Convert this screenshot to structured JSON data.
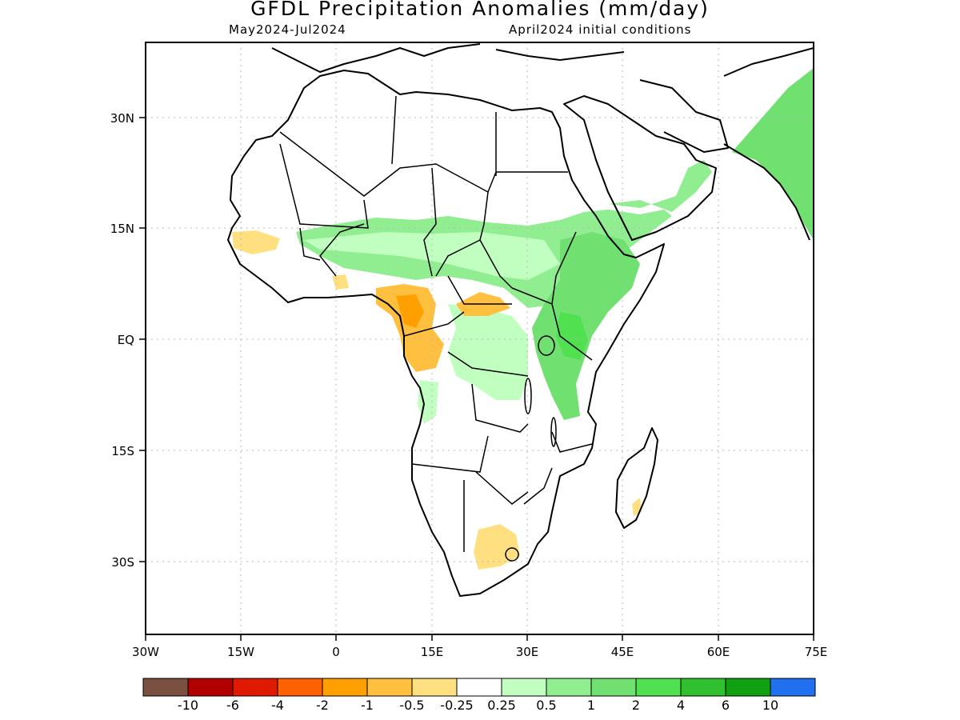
{
  "title": "GFDL Precipitation Anomalies (mm/day)",
  "subtitle_left": "May2024-Jul2024",
  "subtitle_right": "April2024 initial conditions",
  "axes": {
    "x_ticks": [
      "30W",
      "15W",
      "0",
      "15E",
      "30E",
      "45E",
      "60E",
      "75E"
    ],
    "y_ticks": [
      "30N",
      "15N",
      "EQ",
      "15S",
      "30S"
    ],
    "grid": true
  },
  "colorbar": {
    "colors": [
      "#7a5040",
      "#b00000",
      "#e01a00",
      "#ff6000",
      "#ffa000",
      "#ffc040",
      "#ffe080",
      "#ffffff",
      "#c0ffc0",
      "#90ee90",
      "#70e070",
      "#50e050",
      "#30c030",
      "#10a010",
      "#2070f0"
    ],
    "labels": [
      "-10",
      "-6",
      "-4",
      "-2",
      "-1",
      "-0.5",
      "-0.25",
      "0.25",
      "0.5",
      "1",
      "2",
      "4",
      "6",
      "10"
    ]
  },
  "map": {
    "lon_range": [
      -30,
      75
    ],
    "lat_range": [
      -40,
      40
    ],
    "anomaly_regions": [
      {
        "region": "Sahel",
        "level": "0.5 to 1"
      },
      {
        "region": "Ethiopia and East Africa",
        "level": "1 to 2"
      },
      {
        "region": "India",
        "level": "1 to 2"
      },
      {
        "region": "Cameroon / Gabon",
        "level": "-1 to -0.5"
      },
      {
        "region": "Senegal coast",
        "level": "-0.5 to -0.25"
      },
      {
        "region": "Central African Republic",
        "level": "-1 to -0.25"
      },
      {
        "region": "South Africa",
        "level": "-0.5 to -0.25"
      },
      {
        "region": "Congo Basin east",
        "level": "0.25 to 0.5"
      }
    ]
  }
}
